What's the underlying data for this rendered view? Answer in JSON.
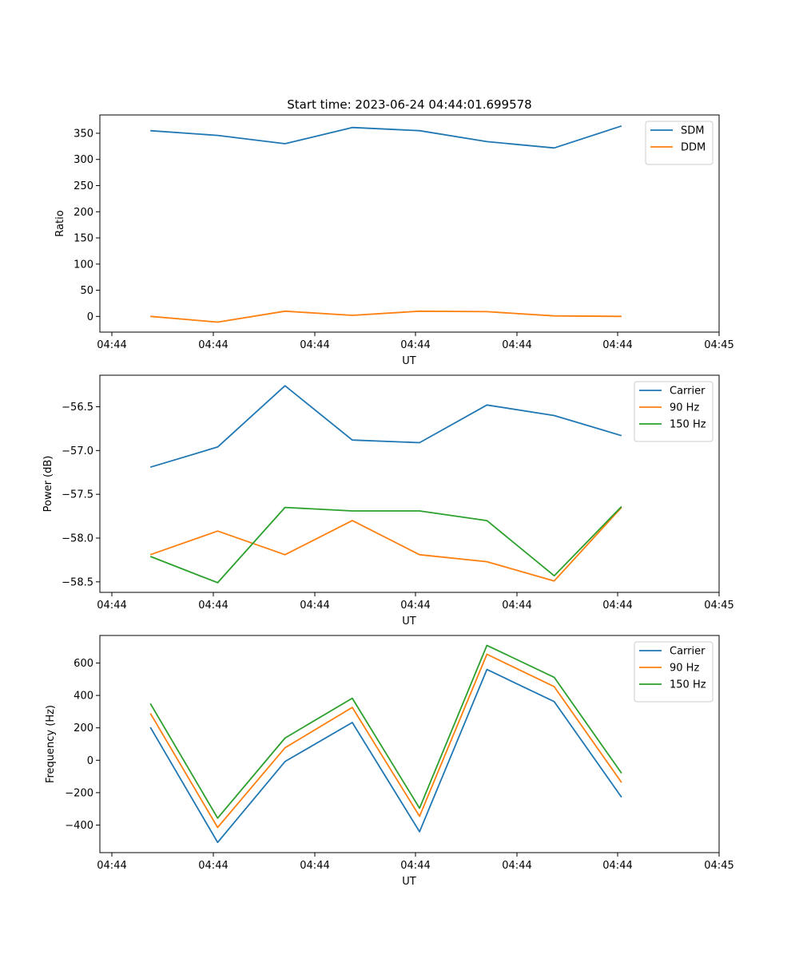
{
  "chart_data": [
    {
      "type": "line",
      "title": "Start time: 2023-06-24 04:44:01.699578",
      "xlabel": "UT",
      "ylabel": "Ratio",
      "x_tick_labels": [
        "04:44",
        "04:44",
        "04:44",
        "04:44",
        "04:44",
        "04:44",
        "04:45"
      ],
      "xlim": [
        0,
        9.2
      ],
      "x": [
        0.75,
        1.75,
        2.75,
        3.75,
        4.75,
        5.75,
        6.75,
        7.75
      ],
      "ylim": [
        -30,
        385
      ],
      "yticks": [
        0,
        50,
        100,
        150,
        200,
        250,
        300,
        350
      ],
      "grid": false,
      "legend_position": "top-right",
      "series": [
        {
          "name": "SDM",
          "color": "#1f77b4",
          "values": [
            355,
            346,
            330,
            361,
            355,
            334,
            322,
            364
          ]
        },
        {
          "name": "DDM",
          "color": "#ff7f0e",
          "values": [
            0,
            -11,
            10,
            2,
            10,
            9,
            1,
            0
          ]
        }
      ]
    },
    {
      "type": "line",
      "title": "",
      "xlabel": "UT",
      "ylabel": "Power (dB)",
      "x_tick_labels": [
        "04:44",
        "04:44",
        "04:44",
        "04:44",
        "04:44",
        "04:44",
        "04:45"
      ],
      "xlim": [
        0,
        9.2
      ],
      "x": [
        0.75,
        1.75,
        2.75,
        3.75,
        4.75,
        5.75,
        6.75,
        7.75
      ],
      "ylim": [
        -58.62,
        -56.14
      ],
      "yticks": [
        -58.5,
        -58.0,
        -57.5,
        -57.0,
        -56.5
      ],
      "ytick_labels": [
        "−58.5",
        "−58.0",
        "−57.5",
        "−57.0",
        "−56.5"
      ],
      "grid": false,
      "legend_position": "top-right",
      "series": [
        {
          "name": "Carrier",
          "color": "#1f77b4",
          "values": [
            -57.19,
            -56.96,
            -56.26,
            -56.88,
            -56.91,
            -56.48,
            -56.6,
            -56.83
          ]
        },
        {
          "name": "90 Hz",
          "color": "#ff7f0e",
          "values": [
            -58.19,
            -57.92,
            -58.19,
            -57.8,
            -58.19,
            -58.27,
            -58.49,
            -57.65
          ]
        },
        {
          "name": "150 Hz",
          "color": "#2ca02c",
          "values": [
            -58.21,
            -58.51,
            -57.65,
            -57.69,
            -57.69,
            -57.8,
            -58.43,
            -57.64
          ]
        }
      ]
    },
    {
      "type": "line",
      "title": "",
      "xlabel": "UT",
      "ylabel": "Frequency (Hz)",
      "x_tick_labels": [
        "04:44",
        "04:44",
        "04:44",
        "04:44",
        "04:44",
        "04:44",
        "04:45"
      ],
      "xlim": [
        0,
        9.2
      ],
      "x": [
        0.75,
        1.75,
        2.75,
        3.75,
        4.75,
        5.75,
        6.75,
        7.75
      ],
      "ylim": [
        -570,
        770
      ],
      "yticks": [
        -400,
        -200,
        0,
        200,
        400,
        600
      ],
      "ytick_labels": [
        "−400",
        "−200",
        "0",
        "200",
        "400",
        "600"
      ],
      "grid": false,
      "legend_position": "top-right",
      "series": [
        {
          "name": "Carrier",
          "color": "#1f77b4",
          "values": [
            203,
            -507,
            -8,
            233,
            -441,
            560,
            362,
            -228
          ]
        },
        {
          "name": "90 Hz",
          "color": "#ff7f0e",
          "values": [
            289,
            -415,
            77,
            326,
            -346,
            654,
            454,
            -137
          ]
        },
        {
          "name": "150 Hz",
          "color": "#2ca02c",
          "values": [
            350,
            -357,
            137,
            383,
            -296,
            709,
            512,
            -80
          ]
        }
      ]
    }
  ]
}
